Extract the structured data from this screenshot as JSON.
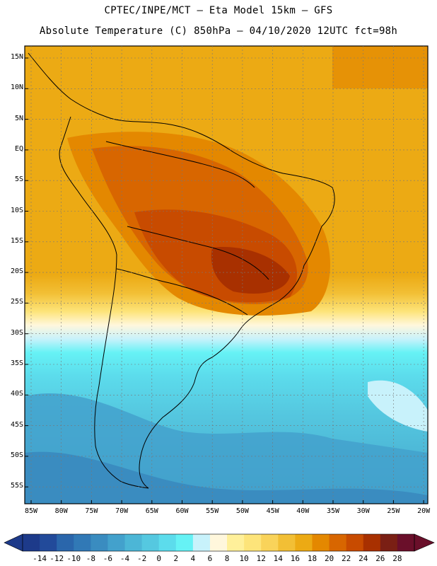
{
  "header": {
    "line1": "CPTEC/INPE/MCT —  Eta Model 15km — GFS",
    "line2": "Absolute Temperature (C) 850hPa — 04/10/2020 12UTC fct=98h"
  },
  "map": {
    "lat_labels": [
      "15N",
      "10N",
      "5N",
      "EQ",
      "5S",
      "10S",
      "15S",
      "20S",
      "25S",
      "30S",
      "35S",
      "40S",
      "45S",
      "50S",
      "55S"
    ],
    "lon_labels": [
      "85W",
      "80W",
      "75W",
      "70W",
      "65W",
      "60W",
      "55W",
      "50W",
      "45W",
      "40W",
      "35W",
      "30W",
      "25W",
      "20W"
    ],
    "field": "Absolute Temperature (C) 850hPa"
  },
  "colorbar": {
    "labels": [
      "-14",
      "-12",
      "-10",
      "-8",
      "-6",
      "-4",
      "-2",
      "0",
      "2",
      "4",
      "6",
      "8",
      "10",
      "12",
      "14",
      "16",
      "18",
      "20",
      "22",
      "24",
      "26",
      "28"
    ],
    "colors": [
      "#1d3a8a",
      "#224a9a",
      "#2a66ab",
      "#3179b6",
      "#3a8cc0",
      "#43a1cc",
      "#4cb6d6",
      "#55c8e0",
      "#5cdcec",
      "#66f2f5",
      "#c8f2fb",
      "#fff7dc",
      "#fff09a",
      "#fde47a",
      "#f9d35a",
      "#f2bf35",
      "#ecaa14",
      "#e48800",
      "#d86600",
      "#c84b00",
      "#a83000",
      "#7a1f14",
      "#6a0f2a"
    ]
  }
}
